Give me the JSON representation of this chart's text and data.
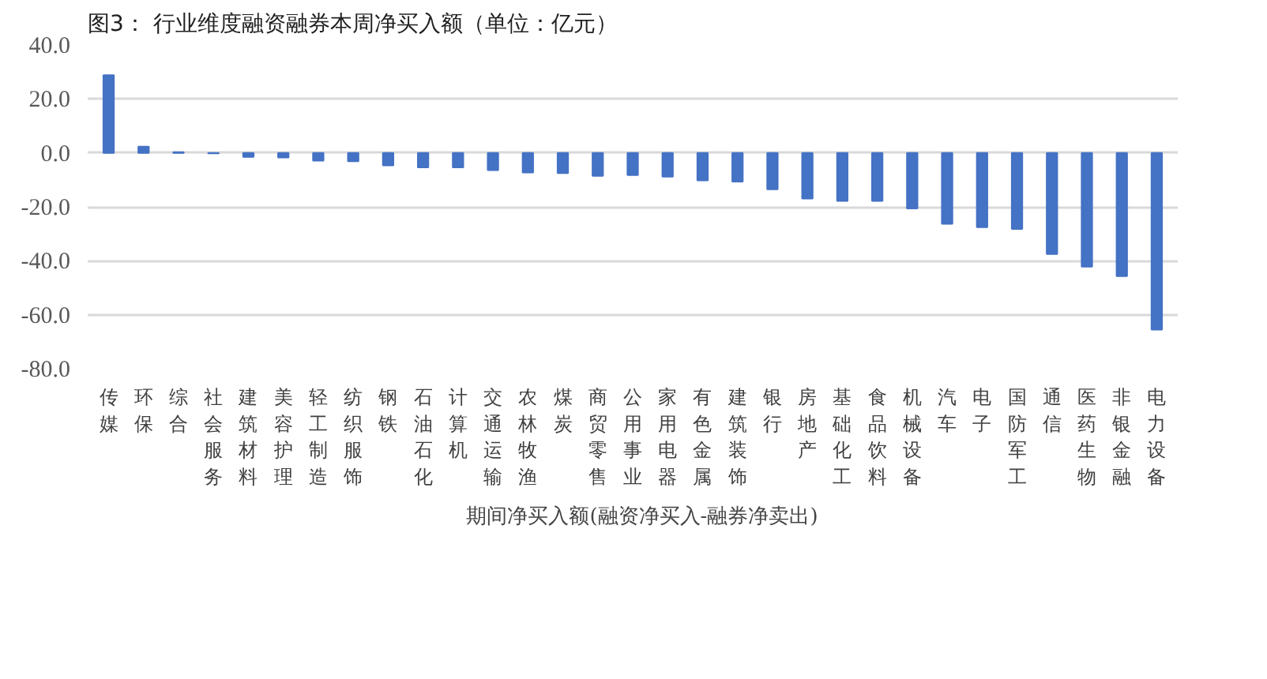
{
  "chart_data": {
    "type": "bar",
    "title": "图3：  行业维度融资融券本周净买入额（单位：亿元）",
    "categories": [
      "传媒",
      "环保",
      "综合",
      "社会服务",
      "建筑材料",
      "美容护理",
      "轻工制造",
      "纺织服饰",
      "钢铁",
      "石油石化",
      "计算机",
      "交通运输",
      "农林牧渔",
      "煤炭",
      "商贸零售",
      "公用事业",
      "家用电器",
      "有色金属",
      "建筑装饰",
      "银行",
      "房地产",
      "基础化工",
      "食品饮料",
      "机械设备",
      "汽车",
      "电子",
      "国防军工",
      "通信",
      "医药生物",
      "非银金融",
      "电力设备"
    ],
    "series": [
      {
        "name": "期间净买入额(融资净买入-融券净卖出)",
        "color": "#4472c4",
        "values": [
          28.8,
          2.3,
          0.3,
          -0.2,
          -1.5,
          -1.7,
          -2.9,
          -3.1,
          -4.6,
          -5.4,
          -5.4,
          -6.4,
          -7.3,
          -7.5,
          -8.5,
          -8.2,
          -8.8,
          -10.2,
          -10.6,
          -13.5,
          -16.9,
          -17.8,
          -17.8,
          -20.6,
          -26.3,
          -27.5,
          -28.2,
          -37.5,
          -42.2,
          -45.7,
          -65.5
        ]
      }
    ],
    "ylim": [
      -80,
      40
    ],
    "yticks": [
      {
        "value": 40,
        "label": "40.0"
      },
      {
        "value": 20,
        "label": "20.0"
      },
      {
        "value": 0,
        "label": "0.0"
      },
      {
        "value": -20,
        "label": "-20.0"
      },
      {
        "value": -40,
        "label": "-40.0"
      },
      {
        "value": -60,
        "label": "-60.0"
      },
      {
        "value": -80,
        "label": "-80.0"
      }
    ],
    "grid": "y",
    "legend": "bottom"
  }
}
